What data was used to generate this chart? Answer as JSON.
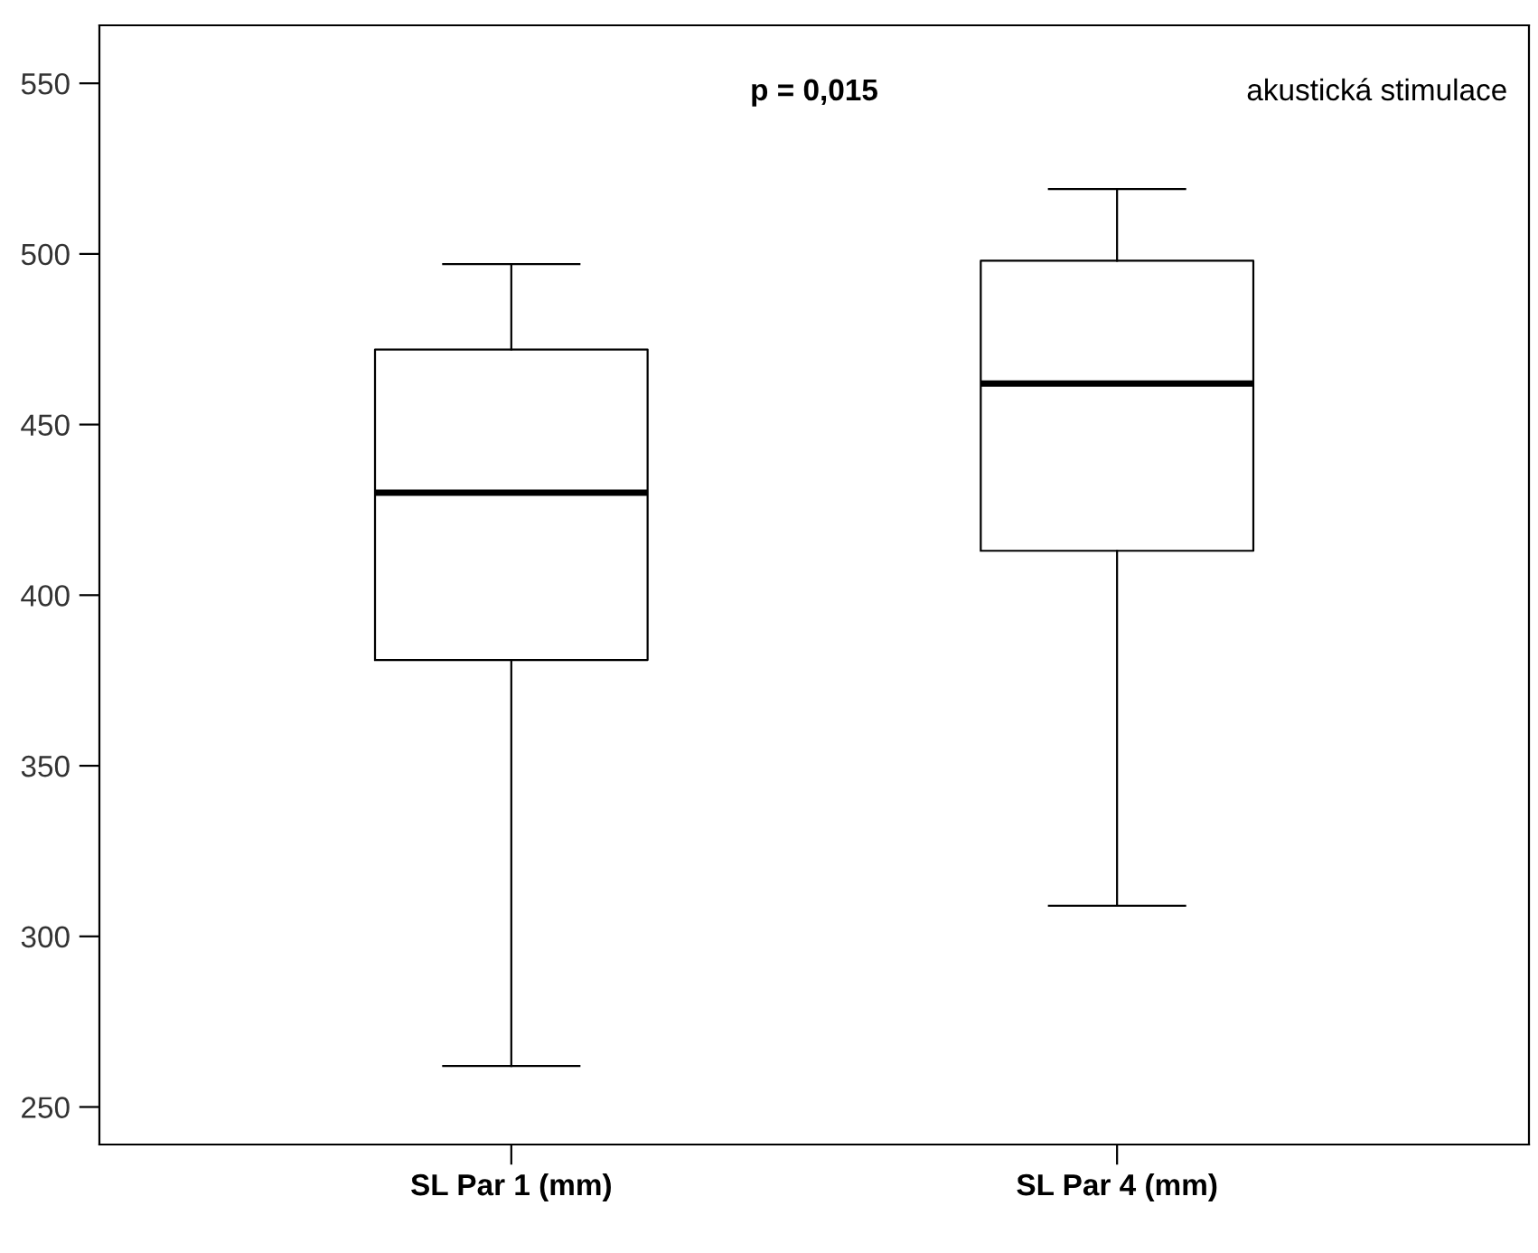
{
  "chart_data": {
    "type": "box",
    "categories": [
      "SL Par 1 (mm)",
      "SL Par 4 (mm)"
    ],
    "boxes": [
      {
        "low": 262,
        "q1": 381,
        "median": 430,
        "q3": 472,
        "high": 497
      },
      {
        "low": 309,
        "q1": 413,
        "median": 462,
        "q3": 498,
        "high": 519
      }
    ],
    "ylim": [
      239,
      567
    ],
    "yticks": [
      250,
      300,
      350,
      400,
      450,
      500,
      550
    ],
    "grid": false,
    "legend": false,
    "annotations": [
      "p = 0,015",
      "akustická stimulace"
    ]
  }
}
